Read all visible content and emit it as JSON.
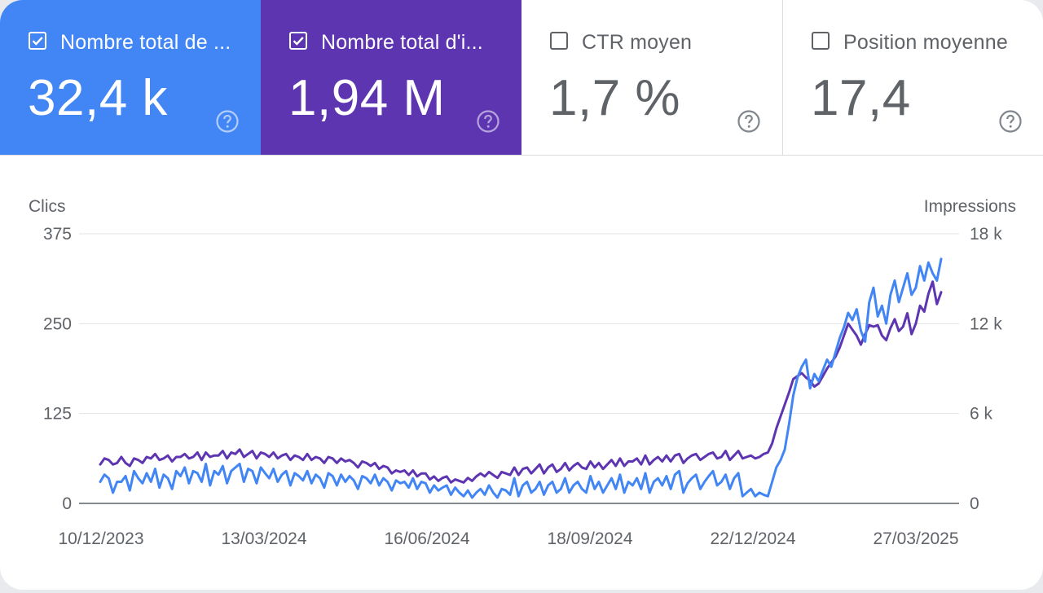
{
  "metrics": [
    {
      "label": "Nombre total de ...",
      "value": "32,4 k",
      "checked": true,
      "color": "#4285f4"
    },
    {
      "label": "Nombre total d'i...",
      "value": "1,94 M",
      "checked": true,
      "color": "#5e35b1"
    },
    {
      "label": "CTR moyen",
      "value": "1,7 %",
      "checked": false
    },
    {
      "label": "Position moyenne",
      "value": "17,4",
      "checked": false
    }
  ],
  "help_icon": "help-circle-icon",
  "check_icon": "checkbox-checked-icon",
  "chart_data": {
    "type": "line",
    "x_tick_labels": [
      "10/12/2023",
      "13/03/2024",
      "16/06/2024",
      "18/09/2024",
      "22/12/2024",
      "27/03/2025"
    ],
    "ylabel_left": "Clics",
    "ylabel_right": "Impressions",
    "ylim_left": [
      0,
      375
    ],
    "ylim_right": [
      0,
      18000
    ],
    "y_ticks_left": [
      "0",
      "125",
      "250",
      "375"
    ],
    "y_ticks_right": [
      "0",
      "6 k",
      "12 k",
      "18 k"
    ],
    "grid": true,
    "series": [
      {
        "axis": "left",
        "color": "#4285f4",
        "values": [
          30,
          40,
          35,
          15,
          30,
          30,
          38,
          18,
          45,
          35,
          28,
          42,
          30,
          48,
          22,
          40,
          35,
          20,
          45,
          38,
          50,
          28,
          45,
          42,
          30,
          55,
          25,
          45,
          40,
          52,
          28,
          45,
          50,
          55,
          30,
          48,
          45,
          28,
          50,
          42,
          35,
          48,
          30,
          40,
          45,
          25,
          42,
          38,
          32,
          45,
          28,
          40,
          35,
          22,
          42,
          38,
          25,
          40,
          30,
          38,
          32,
          20,
          38,
          35,
          28,
          40,
          25,
          35,
          30,
          18,
          32,
          28,
          30,
          22,
          35,
          20,
          30,
          28,
          15,
          25,
          18,
          22,
          25,
          12,
          22,
          15,
          10,
          18,
          8,
          15,
          20,
          12,
          25,
          15,
          8,
          20,
          18,
          12,
          35,
          10,
          25,
          30,
          15,
          20,
          30,
          12,
          25,
          30,
          15,
          20,
          35,
          15,
          25,
          30,
          20,
          15,
          38,
          20,
          30,
          15,
          25,
          35,
          20,
          40,
          15,
          30,
          25,
          35,
          20,
          42,
          15,
          30,
          35,
          25,
          38,
          20,
          40,
          45,
          15,
          28,
          35,
          40,
          20,
          30,
          38,
          45,
          25,
          30,
          40,
          20,
          35,
          42,
          10,
          15,
          20,
          10,
          15,
          12,
          10,
          30,
          50,
          60,
          75,
          110,
          150,
          175,
          190,
          200,
          160,
          180,
          170,
          185,
          200,
          190,
          210,
          230,
          245,
          265,
          255,
          270,
          240,
          225,
          280,
          300,
          260,
          275,
          250,
          290,
          310,
          280,
          300,
          320,
          290,
          300,
          330,
          310,
          335,
          320,
          310,
          340
        ],
        "name": ""
      },
      {
        "axis": "right",
        "values": [
          2600,
          3000,
          2900,
          2600,
          2700,
          3100,
          2700,
          2500,
          3000,
          2900,
          2700,
          3100,
          3000,
          3300,
          2900,
          3000,
          3200,
          2800,
          3100,
          3100,
          3300,
          3000,
          3100,
          3400,
          2900,
          3400,
          3100,
          3200,
          3200,
          3500,
          3000,
          3400,
          3300,
          3600,
          3100,
          3300,
          3500,
          3000,
          3400,
          3300,
          3100,
          3400,
          3000,
          3200,
          3300,
          2900,
          3200,
          3100,
          2900,
          3300,
          2900,
          3100,
          3000,
          2700,
          3100,
          3000,
          2700,
          3000,
          2800,
          2900,
          2700,
          2400,
          2800,
          2700,
          2500,
          2700,
          2300,
          2500,
          2400,
          2000,
          2200,
          2100,
          2200,
          1900,
          2200,
          1800,
          2000,
          2000,
          1600,
          1800,
          1500,
          1700,
          1800,
          1400,
          1600,
          1500,
          1400,
          1700,
          1500,
          1800,
          2000,
          1800,
          2100,
          1900,
          1700,
          2100,
          2000,
          1900,
          2400,
          1900,
          2300,
          2400,
          2000,
          2300,
          2600,
          2000,
          2400,
          2600,
          2100,
          2300,
          2700,
          2200,
          2500,
          2700,
          2400,
          2300,
          2800,
          2400,
          2700,
          2300,
          2600,
          2900,
          2500,
          3000,
          2500,
          2800,
          2800,
          3000,
          2600,
          3200,
          2600,
          2900,
          3100,
          2800,
          3200,
          2800,
          3200,
          3300,
          2700,
          3000,
          3200,
          3300,
          2900,
          3100,
          3300,
          3400,
          3000,
          3100,
          3500,
          2900,
          3200,
          3500,
          3000,
          3100,
          3200,
          3000,
          3100,
          3300,
          3400,
          4000,
          5000,
          5800,
          6600,
          7400,
          8300,
          8500,
          8700,
          8400,
          8200,
          7800,
          8000,
          8500,
          9000,
          9400,
          9800,
          10400,
          11200,
          12000,
          11600,
          11200,
          10600,
          11300,
          11900,
          11800,
          11900,
          11200,
          10900,
          11700,
          12300,
          11500,
          11800,
          12700,
          11300,
          12000,
          13200,
          12800,
          14000,
          14800,
          13300,
          14100
        ],
        "name": "",
        "color": "#5e35b1"
      }
    ]
  }
}
